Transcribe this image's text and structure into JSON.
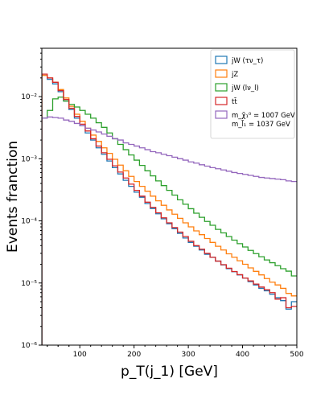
{
  "chart_data": {
    "type": "histogram",
    "xlabel": "p_T(j_1) [GeV]",
    "ylabel": "Events franction",
    "xlim": [
      30,
      500
    ],
    "ylim": [
      1e-06,
      0.06
    ],
    "yscale": "log",
    "grid": false,
    "legend_position": "top-right",
    "x_ticks": [
      100,
      200,
      300,
      400,
      500
    ],
    "x_tick_labels": [
      "100",
      "200",
      "300",
      "400",
      "500"
    ],
    "y_ticks": [
      1e-06,
      1e-05,
      0.0001,
      0.001,
      0.01
    ],
    "y_tick_labels": [
      "10⁻⁶",
      "10⁻⁵",
      "10⁻⁴",
      "10⁻³",
      "10⁻²"
    ],
    "bin_edges_start": 30,
    "bin_width": 10,
    "series": [
      {
        "name": "jW (τν_τ)",
        "color": "#1f77b4",
        "values": [
          0.022,
          0.019,
          0.016,
          0.012,
          0.0085,
          0.0062,
          0.0045,
          0.0034,
          0.0026,
          0.002,
          0.0015,
          0.00118,
          0.00092,
          0.00072,
          0.00057,
          0.00045,
          0.00036,
          0.00029,
          0.00024,
          0.00019,
          0.000158,
          0.00013,
          0.000108,
          9e-05,
          7.5e-05,
          6.3e-05,
          5.3e-05,
          4.5e-05,
          3.9e-05,
          3.4e-05,
          2.9e-05,
          2.6e-05,
          2.25e-05,
          1.95e-05,
          1.7e-05,
          1.52e-05,
          1.35e-05,
          1.2e-05,
          1.05e-05,
          9.3e-06,
          8.2e-06,
          7.5e-06,
          6.6e-06,
          5.8e-06,
          5.2e-06,
          3.8e-06,
          5e-06
        ]
      },
      {
        "name": "jZ",
        "color": "#ff7f0e",
        "values": [
          0.022,
          0.02,
          0.017,
          0.013,
          0.0095,
          0.007,
          0.0052,
          0.004,
          0.0031,
          0.0024,
          0.0019,
          0.0015,
          0.00122,
          0.00098,
          0.00079,
          0.00064,
          0.00052,
          0.00043,
          0.00036,
          0.0003,
          0.00025,
          0.00021,
          0.000178,
          0.00015,
          0.000128,
          0.00011,
          9.3e-05,
          8e-05,
          6.9e-05,
          6e-05,
          5.2e-05,
          4.5e-05,
          3.9e-05,
          3.4e-05,
          2.95e-05,
          2.6e-05,
          2.28e-05,
          2e-05,
          1.75e-05,
          1.54e-05,
          1.35e-05,
          1.18e-05,
          1.03e-05,
          9.3e-06,
          8.2e-06,
          6.8e-06,
          6.2e-06
        ]
      },
      {
        "name": "jW (lν_l)",
        "color": "#2ca02c",
        "values": [
          0.0045,
          0.006,
          0.0092,
          0.0098,
          0.0085,
          0.0075,
          0.0068,
          0.006,
          0.0052,
          0.0045,
          0.0038,
          0.0032,
          0.0026,
          0.0021,
          0.0017,
          0.0014,
          0.00115,
          0.00095,
          0.00078,
          0.00064,
          0.00053,
          0.00044,
          0.00037,
          0.00031,
          0.00026,
          0.000218,
          0.000185,
          0.000157,
          0.000133,
          0.000114,
          9.8e-05,
          8.5e-05,
          7.3e-05,
          6.4e-05,
          5.6e-05,
          4.9e-05,
          4.3e-05,
          3.8e-05,
          3.35e-05,
          2.97e-05,
          2.65e-05,
          2.35e-05,
          2.12e-05,
          1.9e-05,
          1.7e-05,
          1.55e-05,
          1.3e-05
        ]
      },
      {
        "name": "tt̄",
        "color": "#d62728",
        "values": [
          0.023,
          0.02,
          0.017,
          0.0125,
          0.009,
          0.0065,
          0.0048,
          0.0036,
          0.0028,
          0.0021,
          0.0016,
          0.00125,
          0.00098,
          0.00077,
          0.00061,
          0.00049,
          0.00039,
          0.00031,
          0.00025,
          0.0002,
          0.000165,
          0.000135,
          0.000112,
          9.3e-05,
          7.8e-05,
          6.6e-05,
          5.6e-05,
          4.7e-05,
          4e-05,
          3.5e-05,
          3e-05,
          2.6e-05,
          2.25e-05,
          1.97e-05,
          1.73e-05,
          1.53e-05,
          1.36e-05,
          1.2e-05,
          1.08e-05,
          9.6e-06,
          8.6e-06,
          7.8e-06,
          7e-06,
          5.5e-06,
          5.8e-06,
          4e-06,
          4.2e-06
        ]
      },
      {
        "name": "m_χ̃₁⁰ = 1007 GeV, m_l̃₁ = 1037 GeV",
        "color": "#9467bd",
        "values": [
          0.0045,
          0.0047,
          0.0046,
          0.0045,
          0.0042,
          0.004,
          0.0037,
          0.0034,
          0.0031,
          0.0029,
          0.0027,
          0.0025,
          0.0023,
          0.0021,
          0.002,
          0.0018,
          0.0017,
          0.0016,
          0.0015,
          0.0014,
          0.0013,
          0.00125,
          0.00118,
          0.00112,
          0.00106,
          0.001,
          0.00095,
          0.00089,
          0.00085,
          0.0008,
          0.00076,
          0.00072,
          0.00069,
          0.00066,
          0.00063,
          0.0006,
          0.00058,
          0.00056,
          0.00054,
          0.00052,
          0.0005,
          0.00049,
          0.00048,
          0.00047,
          0.00046,
          0.00044,
          0.00043
        ]
      }
    ]
  }
}
